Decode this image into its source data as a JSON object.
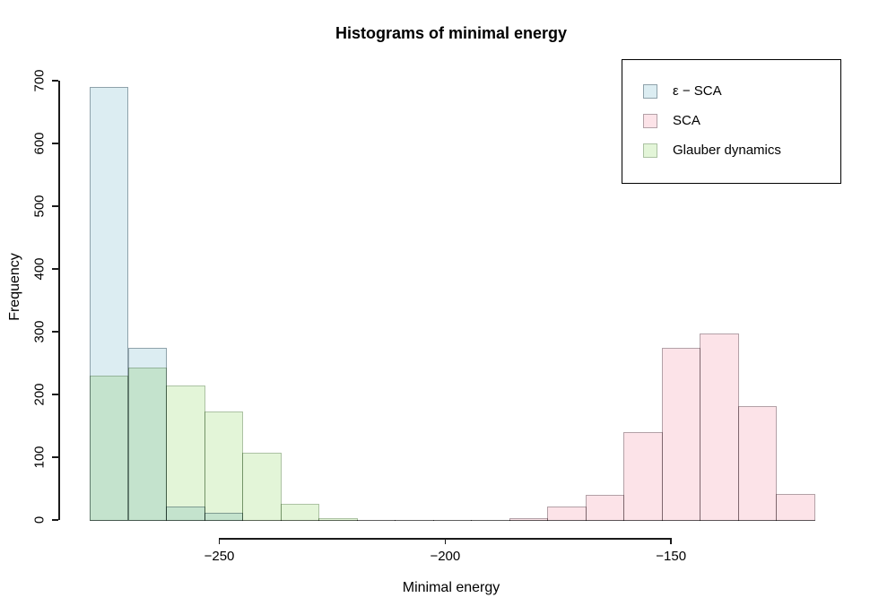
{
  "title": "Histograms of minimal energy",
  "axes": {
    "x_label": "Minimal energy",
    "y_label": "Frequency",
    "x_tick_labels": [
      "−250",
      "−200",
      "−150"
    ],
    "y_tick_labels": [
      "0",
      "100",
      "200",
      "300",
      "400",
      "500",
      "600",
      "700"
    ]
  },
  "legend": {
    "position": "top-right",
    "items": [
      "ε − SCA",
      "SCA",
      "Glauber dynamics"
    ]
  },
  "chart_data": {
    "type": "bar",
    "subtype": "overlaid-histograms",
    "title": "Histograms of minimal energy",
    "xlabel": "Minimal energy",
    "ylabel": "Frequency",
    "xlim": [
      -285,
      -112
    ],
    "ylim": [
      0,
      700
    ],
    "grid": false,
    "legend_position": "top-right",
    "x_tick_values": [
      -250,
      -200,
      -150
    ],
    "y_tick_values": [
      0,
      100,
      200,
      300,
      400,
      500,
      600,
      700
    ],
    "bins": {
      "start": -278.7,
      "width": 8.44,
      "count": 19
    },
    "series": [
      {
        "name": "ε − SCA",
        "fill": "#dcedf2",
        "border": "#8fa2ab",
        "counts": [
          690,
          275,
          21,
          11,
          0,
          0,
          0,
          0,
          0,
          0,
          0,
          0,
          0,
          0,
          0,
          0,
          0,
          0,
          0
        ]
      },
      {
        "name": "SCA",
        "fill": "#fce3e8",
        "border": "#b3a1a7",
        "counts": [
          0,
          0,
          0,
          0,
          0,
          0,
          0,
          0,
          0,
          0,
          0,
          3,
          21,
          40,
          140,
          275,
          297,
          182,
          41
        ]
      },
      {
        "name": "Glauber dynamics",
        "fill": "#e3f5d8",
        "border": "#acc2a3",
        "counts": [
          230,
          243,
          215,
          173,
          107,
          26,
          3,
          0,
          0,
          0,
          0,
          0,
          0,
          0,
          0,
          0,
          0,
          0,
          0
        ]
      }
    ],
    "colors": {
      "background": "#ffffff",
      "axis": "#1a1a1a",
      "zero_bar_line": "#b8b8b8",
      "overlap_blue_green": "#c3e2cc"
    }
  }
}
